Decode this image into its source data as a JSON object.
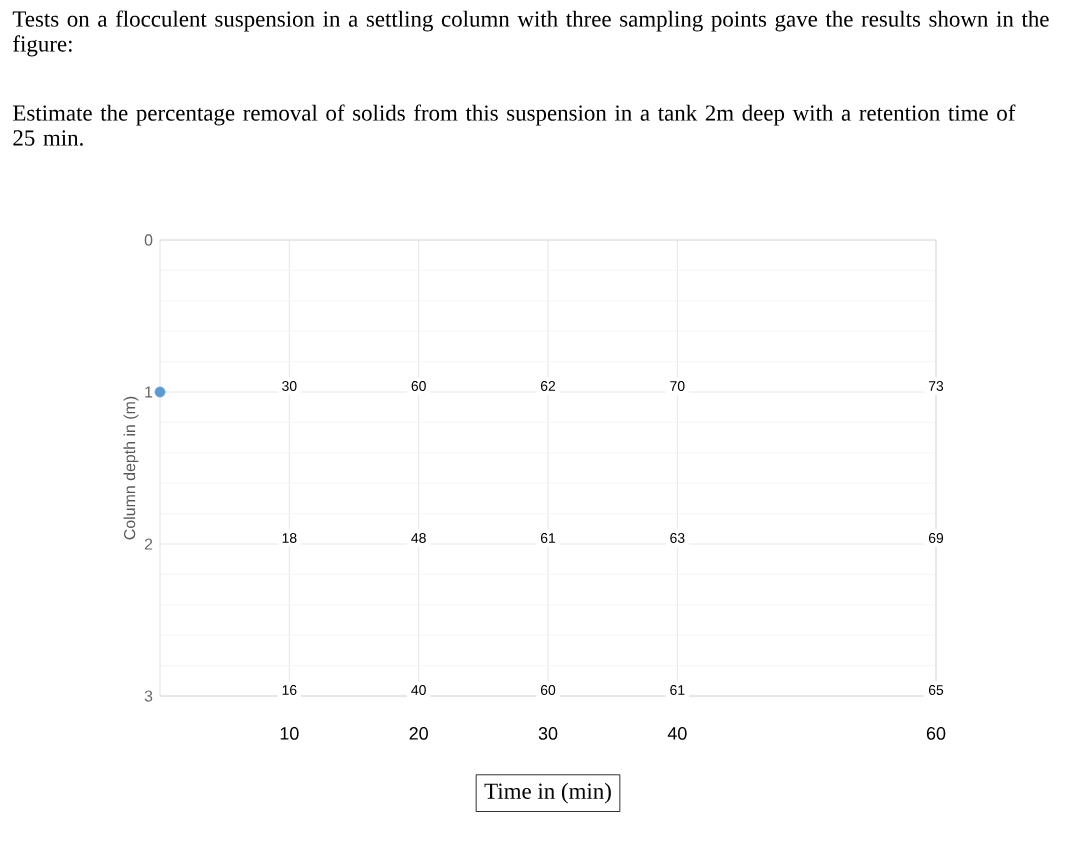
{
  "chart_data": {
    "type": "scatter",
    "title": "Tests on a flocculent suspension in a settling column with three sampling points gave the results shown in the figure:",
    "subtitle": "Estimate the percentage removal of solids from this suspension in a tank 2m deep with a retention time of 25 min.",
    "xlabel": "Time in (min)",
    "ylabel": "Column depth in (m)",
    "series": [
      {
        "x": [
          0
        ],
        "values": [
          1
        ],
        "color": "#5b9bd5",
        "marker": "circle"
      }
    ],
    "annotations": [
      "30",
      "60",
      "62",
      "70",
      "73",
      "18",
      "48",
      "61",
      "63",
      "69",
      "16",
      "40",
      "60",
      "61",
      "65"
    ],
    "xlim": [
      0,
      60
    ],
    "xticks": [
      10,
      20,
      30,
      40,
      60
    ],
    "ylim": [
      3,
      0
    ],
    "yticks": [
      0,
      1,
      2,
      3
    ],
    "grid": true
  }
}
